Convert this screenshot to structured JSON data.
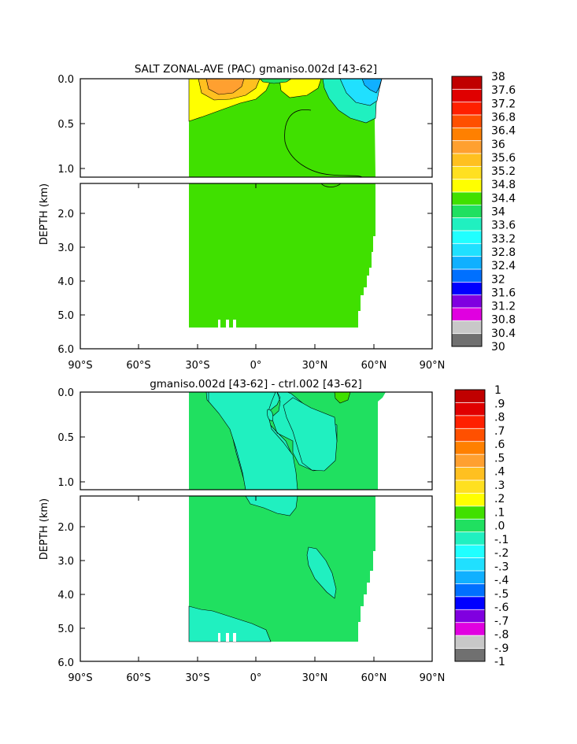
{
  "chart_data": [
    {
      "type": "heatmap",
      "title": "SALT ZONAL-AVE (PAC) gmaniso.002d [43-62]",
      "ylabel": "DEPTH (km)",
      "x_ticks": [
        "90°S",
        "60°S",
        "30°S",
        "0°",
        "30°N",
        "60°N",
        "90°N"
      ],
      "y_ticks_upper": [
        "0.0",
        "0.5",
        "1.0"
      ],
      "y_ticks_lower": [
        "2.0",
        "3.0",
        "4.0",
        "5.0",
        "6.0"
      ],
      "xlim": [
        -90,
        90
      ],
      "ylim": [
        6.0,
        0.0
      ],
      "colorbar_labels": [
        "38",
        "37.6",
        "37.2",
        "36.8",
        "36.4",
        "36",
        "35.6",
        "35.2",
        "34.8",
        "34.4",
        "34",
        "33.6",
        "33.2",
        "32.8",
        "32.4",
        "32",
        "31.6",
        "31.2",
        "30.8",
        "30.4",
        "30"
      ],
      "colorbar_colors": [
        "#c00000",
        "#e00000",
        "#ff2000",
        "#ff5000",
        "#ff8000",
        "#ffa030",
        "#ffc020",
        "#ffe020",
        "#ffff00",
        "#40e000",
        "#20e060",
        "#20f0c0",
        "#20ffff",
        "#20e0ff",
        "#10b0ff",
        "#0070ff",
        "#0000ff",
        "#8000e0",
        "#e000e0",
        "#c8c8c8",
        "#707070"
      ]
    },
    {
      "type": "heatmap",
      "title": "gmaniso.002d [43-62] - ctrl.002 [43-62]",
      "ylabel": "DEPTH (km)",
      "x_ticks": [
        "90°S",
        "60°S",
        "30°S",
        "0°",
        "30°N",
        "60°N",
        "90°N"
      ],
      "y_ticks_upper": [
        "0.0",
        "0.5",
        "1.0"
      ],
      "y_ticks_lower": [
        "2.0",
        "3.0",
        "4.0",
        "5.0",
        "6.0"
      ],
      "xlim": [
        -90,
        90
      ],
      "ylim": [
        6.0,
        0.0
      ],
      "colorbar_labels": [
        "1",
        ".9",
        ".8",
        ".7",
        ".6",
        ".5",
        ".4",
        ".3",
        ".2",
        ".1",
        ".0",
        "-.1",
        "-.2",
        "-.3",
        "-.4",
        "-.5",
        "-.6",
        "-.7",
        "-.8",
        "-.9",
        "-1"
      ],
      "colorbar_colors": [
        "#c00000",
        "#e00000",
        "#ff2000",
        "#ff5000",
        "#ff8000",
        "#ffa030",
        "#ffc020",
        "#ffe020",
        "#ffff00",
        "#40e000",
        "#20e060",
        "#20f0c0",
        "#20ffff",
        "#20e0ff",
        "#10b0ff",
        "#0070ff",
        "#0000ff",
        "#8000e0",
        "#e000e0",
        "#c8c8c8",
        "#707070"
      ]
    }
  ]
}
